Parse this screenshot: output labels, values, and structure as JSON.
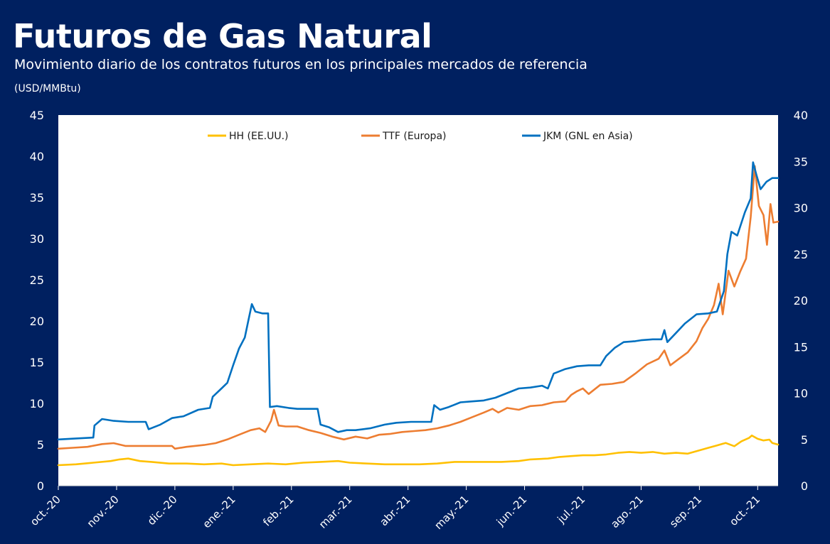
{
  "header": {
    "title": "Futuros de Gas Natural",
    "subtitle": "Movimiento diario de los contratos futuros en los principales mercados de referencia",
    "unit": "(USD/MMBtu)"
  },
  "colors": {
    "background": "#002060",
    "plot_background": "#ffffff",
    "HH": "#FFC000",
    "TTF": "#ED7D31",
    "JKM": "#0070C0"
  },
  "chart_data": {
    "type": "line",
    "x_labels": [
      "oct.-20",
      "nov.-20",
      "dic.-20",
      "ene.-21",
      "feb.-21",
      "mar.-21",
      "abr.-21",
      "may.-21",
      "jun.-21",
      "jul.-21",
      "ago.-21",
      "sep.-21",
      "oct.-21"
    ],
    "x_range": [
      0,
      12.35
    ],
    "y_left": {
      "range": [
        0,
        45
      ],
      "ticks": [
        "0",
        "5",
        "10",
        "15",
        "20",
        "25",
        "30",
        "35",
        "40",
        "45"
      ]
    },
    "y_right": {
      "range": [
        0,
        40
      ],
      "ticks": [
        "0",
        "5",
        "10",
        "15",
        "20",
        "25",
        "30",
        "35",
        "40"
      ]
    },
    "grid": false,
    "legend": "top",
    "series": [
      {
        "name": "HH (EE.UU.)",
        "key": "HH",
        "axis": "left",
        "points": [
          [
            0,
            2.5
          ],
          [
            0.3,
            2.6
          ],
          [
            0.6,
            2.8
          ],
          [
            0.9,
            3.0
          ],
          [
            1.05,
            3.2
          ],
          [
            1.2,
            3.3
          ],
          [
            1.4,
            3.0
          ],
          [
            1.6,
            2.9
          ],
          [
            1.9,
            2.7
          ],
          [
            2.2,
            2.7
          ],
          [
            2.5,
            2.6
          ],
          [
            2.8,
            2.7
          ],
          [
            3.0,
            2.5
          ],
          [
            3.3,
            2.6
          ],
          [
            3.6,
            2.7
          ],
          [
            3.9,
            2.6
          ],
          [
            4.2,
            2.8
          ],
          [
            4.5,
            2.9
          ],
          [
            4.8,
            3.0
          ],
          [
            5.0,
            2.8
          ],
          [
            5.3,
            2.7
          ],
          [
            5.6,
            2.6
          ],
          [
            5.9,
            2.6
          ],
          [
            6.2,
            2.6
          ],
          [
            6.5,
            2.7
          ],
          [
            6.8,
            2.9
          ],
          [
            7.0,
            2.9
          ],
          [
            7.3,
            2.9
          ],
          [
            7.6,
            2.9
          ],
          [
            7.9,
            3.0
          ],
          [
            8.1,
            3.2
          ],
          [
            8.4,
            3.3
          ],
          [
            8.6,
            3.5
          ],
          [
            8.8,
            3.6
          ],
          [
            9.0,
            3.7
          ],
          [
            9.2,
            3.7
          ],
          [
            9.4,
            3.8
          ],
          [
            9.6,
            4.0
          ],
          [
            9.8,
            4.1
          ],
          [
            10.0,
            4.0
          ],
          [
            10.2,
            4.1
          ],
          [
            10.4,
            3.9
          ],
          [
            10.6,
            4.0
          ],
          [
            10.8,
            3.9
          ],
          [
            11.0,
            4.3
          ],
          [
            11.15,
            4.6
          ],
          [
            11.3,
            4.9
          ],
          [
            11.45,
            5.2
          ],
          [
            11.6,
            4.8
          ],
          [
            11.72,
            5.4
          ],
          [
            11.85,
            5.8
          ],
          [
            11.9,
            6.1
          ],
          [
            12.0,
            5.7
          ],
          [
            12.1,
            5.5
          ],
          [
            12.2,
            5.6
          ],
          [
            12.25,
            5.2
          ],
          [
            12.35,
            5.0
          ]
        ]
      },
      {
        "name": "TTF (Europa)",
        "key": "TTF",
        "axis": "right",
        "points": [
          [
            0,
            4.0
          ],
          [
            0.25,
            4.1
          ],
          [
            0.5,
            4.2
          ],
          [
            0.75,
            4.5
          ],
          [
            0.95,
            4.6
          ],
          [
            1.15,
            4.3
          ],
          [
            1.4,
            4.3
          ],
          [
            1.7,
            4.3
          ],
          [
            1.95,
            4.3
          ],
          [
            2.0,
            4.0
          ],
          [
            2.2,
            4.2
          ],
          [
            2.5,
            4.4
          ],
          [
            2.7,
            4.6
          ],
          [
            2.9,
            5.0
          ],
          [
            3.1,
            5.5
          ],
          [
            3.3,
            6.0
          ],
          [
            3.45,
            6.2
          ],
          [
            3.55,
            5.8
          ],
          [
            3.65,
            7.0
          ],
          [
            3.7,
            8.2
          ],
          [
            3.78,
            6.5
          ],
          [
            3.9,
            6.4
          ],
          [
            4.1,
            6.4
          ],
          [
            4.3,
            6.0
          ],
          [
            4.5,
            5.7
          ],
          [
            4.7,
            5.3
          ],
          [
            4.9,
            5.0
          ],
          [
            5.1,
            5.3
          ],
          [
            5.3,
            5.1
          ],
          [
            5.5,
            5.5
          ],
          [
            5.7,
            5.6
          ],
          [
            5.9,
            5.8
          ],
          [
            6.1,
            5.9
          ],
          [
            6.3,
            6.0
          ],
          [
            6.5,
            6.2
          ],
          [
            6.7,
            6.5
          ],
          [
            6.9,
            6.9
          ],
          [
            7.1,
            7.4
          ],
          [
            7.3,
            7.9
          ],
          [
            7.45,
            8.3
          ],
          [
            7.55,
            7.9
          ],
          [
            7.7,
            8.4
          ],
          [
            7.9,
            8.2
          ],
          [
            8.1,
            8.6
          ],
          [
            8.3,
            8.7
          ],
          [
            8.5,
            9.0
          ],
          [
            8.7,
            9.1
          ],
          [
            8.8,
            9.8
          ],
          [
            8.9,
            10.2
          ],
          [
            9.0,
            10.5
          ],
          [
            9.1,
            9.9
          ],
          [
            9.3,
            10.9
          ],
          [
            9.5,
            11.0
          ],
          [
            9.7,
            11.2
          ],
          [
            9.9,
            12.1
          ],
          [
            10.1,
            13.1
          ],
          [
            10.3,
            13.7
          ],
          [
            10.4,
            14.6
          ],
          [
            10.5,
            13.0
          ],
          [
            10.65,
            13.7
          ],
          [
            10.8,
            14.4
          ],
          [
            10.95,
            15.6
          ],
          [
            11.05,
            17.0
          ],
          [
            11.15,
            18.0
          ],
          [
            11.25,
            19.5
          ],
          [
            11.33,
            21.8
          ],
          [
            11.4,
            18.5
          ],
          [
            11.5,
            23.2
          ],
          [
            11.6,
            21.5
          ],
          [
            11.7,
            23.1
          ],
          [
            11.8,
            24.5
          ],
          [
            11.88,
            29.0
          ],
          [
            11.95,
            34.5
          ],
          [
            12.02,
            30.2
          ],
          [
            12.1,
            29.2
          ],
          [
            12.16,
            26.0
          ],
          [
            12.22,
            30.4
          ],
          [
            12.27,
            28.4
          ],
          [
            12.35,
            28.5
          ]
        ]
      },
      {
        "name": "JKM (GNL en Asia)",
        "key": "JKM",
        "axis": "right",
        "points": [
          [
            0,
            5.0
          ],
          [
            0.3,
            5.1
          ],
          [
            0.6,
            5.2
          ],
          [
            0.62,
            6.5
          ],
          [
            0.75,
            7.2
          ],
          [
            0.95,
            7.0
          ],
          [
            1.2,
            6.9
          ],
          [
            1.5,
            6.9
          ],
          [
            1.55,
            6.1
          ],
          [
            1.75,
            6.6
          ],
          [
            1.95,
            7.3
          ],
          [
            2.15,
            7.5
          ],
          [
            2.4,
            8.2
          ],
          [
            2.6,
            8.4
          ],
          [
            2.65,
            9.6
          ],
          [
            2.8,
            10.5
          ],
          [
            2.9,
            11.1
          ],
          [
            3.0,
            13.0
          ],
          [
            3.1,
            14.8
          ],
          [
            3.2,
            16.0
          ],
          [
            3.25,
            17.5
          ],
          [
            3.32,
            19.6
          ],
          [
            3.38,
            18.8
          ],
          [
            3.5,
            18.6
          ],
          [
            3.6,
            18.6
          ],
          [
            3.63,
            8.5
          ],
          [
            3.75,
            8.6
          ],
          [
            3.95,
            8.4
          ],
          [
            4.1,
            8.3
          ],
          [
            4.45,
            8.3
          ],
          [
            4.5,
            6.6
          ],
          [
            4.65,
            6.3
          ],
          [
            4.8,
            5.8
          ],
          [
            4.95,
            6.0
          ],
          [
            5.1,
            6.0
          ],
          [
            5.35,
            6.2
          ],
          [
            5.6,
            6.6
          ],
          [
            5.8,
            6.8
          ],
          [
            6.05,
            6.9
          ],
          [
            6.4,
            6.9
          ],
          [
            6.45,
            8.7
          ],
          [
            6.55,
            8.2
          ],
          [
            6.7,
            8.5
          ],
          [
            6.9,
            9.0
          ],
          [
            7.1,
            9.1
          ],
          [
            7.3,
            9.2
          ],
          [
            7.5,
            9.5
          ],
          [
            7.7,
            10.0
          ],
          [
            7.9,
            10.5
          ],
          [
            8.1,
            10.6
          ],
          [
            8.3,
            10.8
          ],
          [
            8.4,
            10.5
          ],
          [
            8.5,
            12.1
          ],
          [
            8.7,
            12.6
          ],
          [
            8.9,
            12.9
          ],
          [
            9.1,
            13.0
          ],
          [
            9.3,
            13.0
          ],
          [
            9.4,
            14.0
          ],
          [
            9.55,
            14.9
          ],
          [
            9.7,
            15.5
          ],
          [
            9.9,
            15.6
          ],
          [
            10.0,
            15.7
          ],
          [
            10.2,
            15.8
          ],
          [
            10.35,
            15.8
          ],
          [
            10.4,
            16.8
          ],
          [
            10.45,
            15.5
          ],
          [
            10.6,
            16.5
          ],
          [
            10.75,
            17.5
          ],
          [
            10.95,
            18.5
          ],
          [
            11.15,
            18.6
          ],
          [
            11.3,
            18.8
          ],
          [
            11.42,
            21.0
          ],
          [
            11.48,
            25.0
          ],
          [
            11.55,
            27.4
          ],
          [
            11.65,
            27.0
          ],
          [
            11.78,
            29.5
          ],
          [
            11.88,
            31.0
          ],
          [
            11.92,
            34.9
          ],
          [
            11.98,
            33.5
          ],
          [
            12.05,
            32.0
          ],
          [
            12.15,
            32.8
          ],
          [
            12.25,
            33.2
          ],
          [
            12.35,
            33.2
          ]
        ]
      }
    ]
  }
}
